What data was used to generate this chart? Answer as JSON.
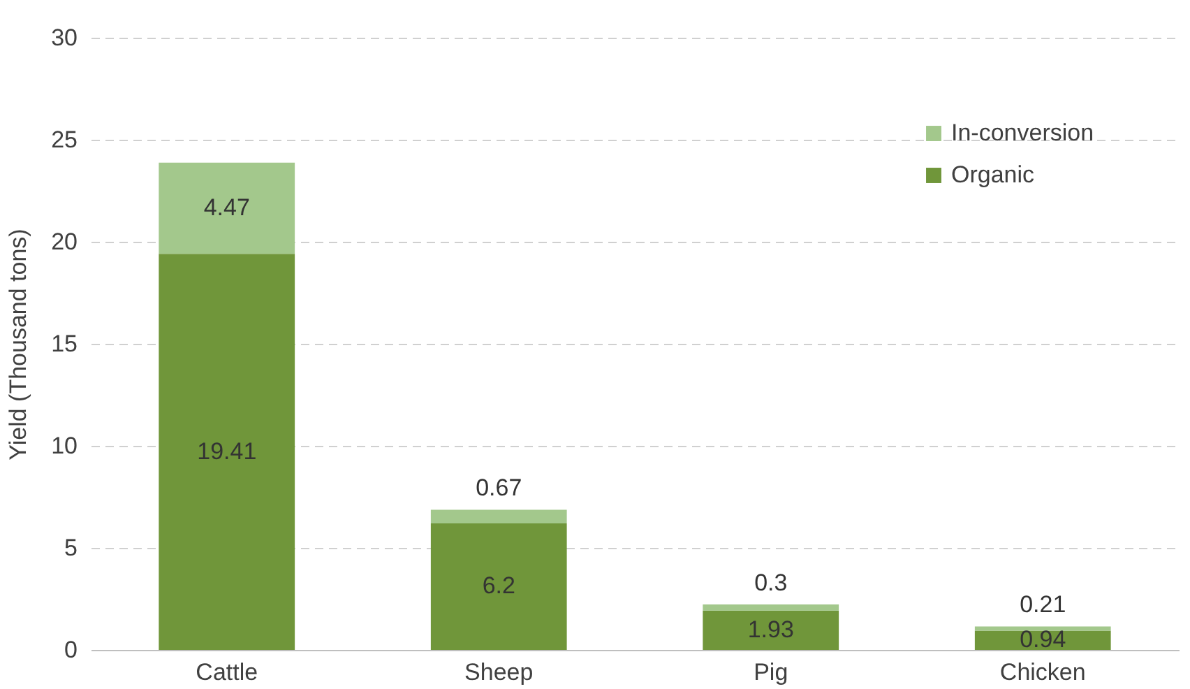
{
  "chart_data": {
    "type": "bar",
    "stacked": true,
    "ylabel": "Yield (Thousand tons)",
    "categories": [
      "Cattle",
      "Sheep",
      "Pig",
      "Chicken"
    ],
    "series": [
      {
        "name": "Organic",
        "color": "#70963a",
        "values": [
          19.41,
          6.2,
          1.93,
          0.94
        ]
      },
      {
        "name": "In-conversion",
        "color": "#a3c88c",
        "values": [
          4.47,
          0.67,
          0.3,
          0.21
        ]
      }
    ],
    "ylim": [
      0,
      30
    ],
    "yticks": [
      0,
      5,
      10,
      15,
      20,
      25,
      30
    ],
    "grid": "y",
    "legend": "top right",
    "data_labels": true
  }
}
